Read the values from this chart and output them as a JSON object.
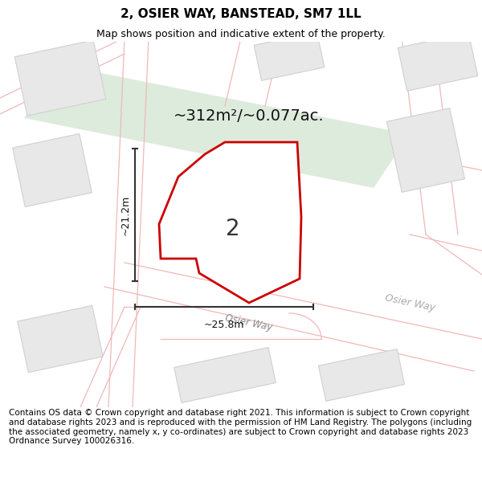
{
  "title": "2, OSIER WAY, BANSTEAD, SM7 1LL",
  "subtitle": "Map shows position and indicative extent of the property.",
  "area_text": "~312m²/~0.077ac.",
  "dim_width": "~25.8m",
  "dim_height": "~21.2m",
  "road_label": "Osier Way",
  "road_label2": "Osier Way",
  "number_label": "2",
  "footer_text": "Contains OS data © Crown copyright and database right 2021. This information is subject to Crown copyright and database rights 2023 and is reproduced with the permission of HM Land Registry. The polygons (including the associated geometry, namely x, y co-ordinates) are subject to Crown copyright and database rights 2023 Ordnance Survey 100026316.",
  "bg_color": "#ffffff",
  "title_fontsize": 11,
  "subtitle_fontsize": 9,
  "footer_fontsize": 7.5
}
